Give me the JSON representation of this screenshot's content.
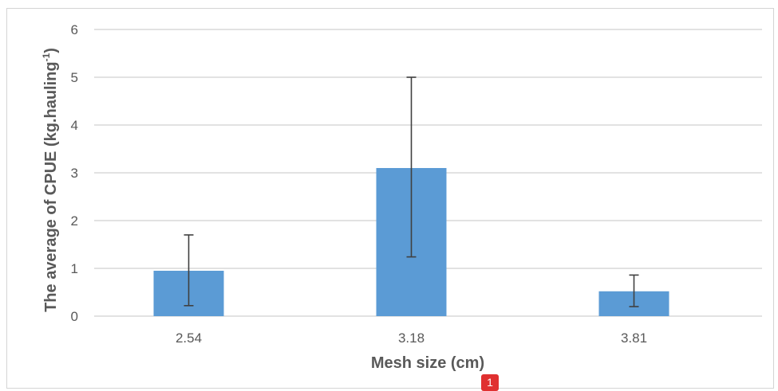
{
  "chart_data": {
    "type": "bar",
    "title": "",
    "xlabel": "Mesh size (cm)",
    "ylabel_main": "The average of CPUE (kg.hauling",
    "ylabel_sup": "-1",
    "ylabel_end": ")",
    "categories": [
      "2.54",
      "3.18",
      "3.81"
    ],
    "values": [
      0.95,
      3.1,
      0.52
    ],
    "error_low": [
      0.22,
      1.24,
      0.2
    ],
    "error_high": [
      1.7,
      5.0,
      0.86
    ],
    "ylim": [
      0,
      6
    ],
    "yticks": [
      "0",
      "1",
      "2",
      "3",
      "4",
      "5",
      "6"
    ],
    "grid": true,
    "colors": {
      "bar": "#5b9bd5",
      "grid": "#d9d9d9",
      "error": "#404040",
      "text": "#595959"
    }
  },
  "badge": {
    "label": "1"
  }
}
